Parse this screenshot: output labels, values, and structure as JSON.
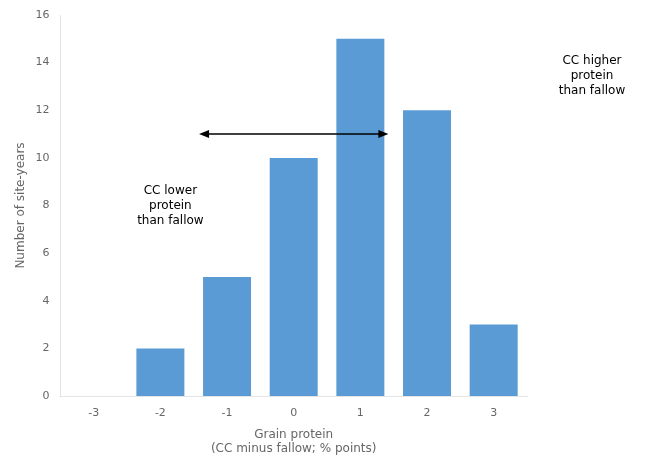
{
  "chart_data": {
    "type": "bar",
    "categories": [
      -3,
      -2,
      -1,
      0,
      1,
      2,
      3
    ],
    "values": [
      0,
      2,
      5,
      10,
      15,
      12,
      3
    ],
    "color": "#5B9BD5",
    "xlabel": "Grain protein\n(CC minus fallow; % points)",
    "ylabel": "Number of site-years",
    "ylim": [
      0,
      16
    ],
    "yticks": [
      0,
      2,
      4,
      6,
      8,
      10,
      12,
      14,
      16
    ],
    "grid": false,
    "annotations": [
      "CC lower\nprotein\nthan fallow",
      "CC higher\nprotein\nthan fallow"
    ]
  }
}
